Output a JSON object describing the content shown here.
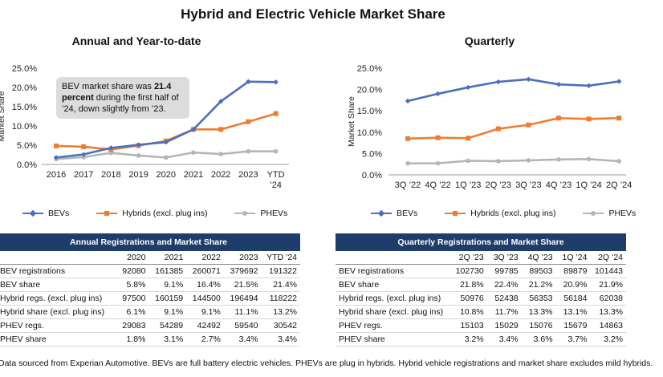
{
  "title": "Hybrid and Electric Vehicle Market Share",
  "callout_parts": [
    "BEV market share was ",
    "21.4 percent",
    " during the first half of ’24, down slightly from ’23."
  ],
  "colors": {
    "bev": "#4a6fbf",
    "hybrid": "#ee7d31",
    "phev": "#b5b5b5",
    "table_header": "#1f3d6b"
  },
  "chart_data": [
    {
      "type": "line",
      "title": "Annual and Year-to-date",
      "ylabel": "Market Share",
      "ylim": [
        0,
        25
      ],
      "yticks": [
        "0.0%",
        "5.0%",
        "10.0%",
        "15.0%",
        "20.0%",
        "25.0%"
      ],
      "categories": [
        "2016",
        "2017",
        "2018",
        "2019",
        "2020",
        "2021",
        "2022",
        "2023",
        "YTD ’24"
      ],
      "grid": false,
      "legend": "bottom",
      "series": [
        {
          "name": "BEVs",
          "marker": "diamond",
          "values": [
            1.8,
            2.6,
            4.3,
            5.1,
            5.8,
            9.1,
            16.4,
            21.5,
            21.4
          ]
        },
        {
          "name": "Hybrids (excl. plug ins)",
          "marker": "square",
          "values": [
            4.8,
            4.6,
            3.9,
            4.9,
            6.1,
            9.1,
            9.1,
            11.1,
            13.2
          ]
        },
        {
          "name": "PHEVs",
          "marker": "circle",
          "values": [
            1.4,
            1.9,
            3.0,
            2.3,
            1.8,
            3.1,
            2.7,
            3.4,
            3.4
          ]
        }
      ]
    },
    {
      "type": "line",
      "title": "Quarterly",
      "ylabel": "Market Share",
      "ylim": [
        0,
        25
      ],
      "yticks": [
        "0.0%",
        "5.0%",
        "10.0%",
        "15.0%",
        "20.0%",
        "25.0%"
      ],
      "categories": [
        "3Q ’22",
        "4Q ’22",
        "1Q ’23",
        "2Q ’23",
        "3Q ’23",
        "4Q ’23",
        "1Q ’24",
        "2Q ’24"
      ],
      "grid": false,
      "legend": "bottom",
      "series": [
        {
          "name": "BEVs",
          "marker": "diamond",
          "values": [
            17.3,
            19.0,
            20.5,
            21.8,
            22.4,
            21.2,
            20.9,
            21.9
          ]
        },
        {
          "name": "Hybrids (excl. plug ins)",
          "marker": "square",
          "values": [
            8.5,
            8.7,
            8.6,
            10.8,
            11.7,
            13.3,
            13.1,
            13.3
          ]
        },
        {
          "name": "PHEVs",
          "marker": "circle",
          "values": [
            2.7,
            2.7,
            3.3,
            3.2,
            3.4,
            3.6,
            3.7,
            3.2
          ]
        }
      ]
    }
  ],
  "tables": [
    {
      "title": "Annual Registrations and Market Share",
      "columns": [
        "2020",
        "2021",
        "2022",
        "2023",
        "YTD ’24"
      ],
      "rows": [
        {
          "label": "BEV registrations",
          "values": [
            "92080",
            "161385",
            "260071",
            "379692",
            "191322"
          ]
        },
        {
          "label": "BEV share",
          "values": [
            "5.8%",
            "9.1%",
            "16.4%",
            "21.5%",
            "21.4%"
          ]
        },
        {
          "label": "Hybrid regs. (excl. plug ins)",
          "values": [
            "97500",
            "160159",
            "144500",
            "196494",
            "118222"
          ]
        },
        {
          "label": "Hybrid share (excl. plug ins)",
          "values": [
            "6.1%",
            "9.1%",
            "9.1%",
            "11.1%",
            "13.2%"
          ]
        },
        {
          "label": "PHEV regs.",
          "values": [
            "29083",
            "54289",
            "42492",
            "59540",
            "30542"
          ]
        },
        {
          "label": "PHEV share",
          "values": [
            "1.8%",
            "3.1%",
            "2.7%",
            "3.4%",
            "3.4%"
          ]
        }
      ]
    },
    {
      "title": "Quarterly Registrations and Market Share",
      "columns": [
        "2Q ’23",
        "3Q ’23",
        "4Q ’23",
        "1Q ’24",
        "2Q ’24"
      ],
      "rows": [
        {
          "label": "BEV registrations",
          "values": [
            "102730",
            "99785",
            "89503",
            "89879",
            "101443"
          ]
        },
        {
          "label": "BEV share",
          "values": [
            "21.8%",
            "22.4%",
            "21.2%",
            "20.9%",
            "21.9%"
          ]
        },
        {
          "label": "Hybrid regs. (excl. plug ins)",
          "values": [
            "50976",
            "52438",
            "56353",
            "56184",
            "62038"
          ]
        },
        {
          "label": "Hybrid share (excl. plug ins)",
          "values": [
            "10.8%",
            "11.7%",
            "13.3%",
            "13.1%",
            "13.3%"
          ]
        },
        {
          "label": "PHEV regs.",
          "values": [
            "15103",
            "15029",
            "15076",
            "15679",
            "14863"
          ]
        },
        {
          "label": "PHEV share",
          "values": [
            "3.2%",
            "3.4%",
            "3.6%",
            "3.7%",
            "3.2%"
          ]
        }
      ]
    }
  ],
  "footnote": "Data sourced from Experian Automotive. BEVs are full battery electric vehicles. PHEVs are plug in hybrids. Hybrid vehicle registrations and market share excludes mild hybrids."
}
